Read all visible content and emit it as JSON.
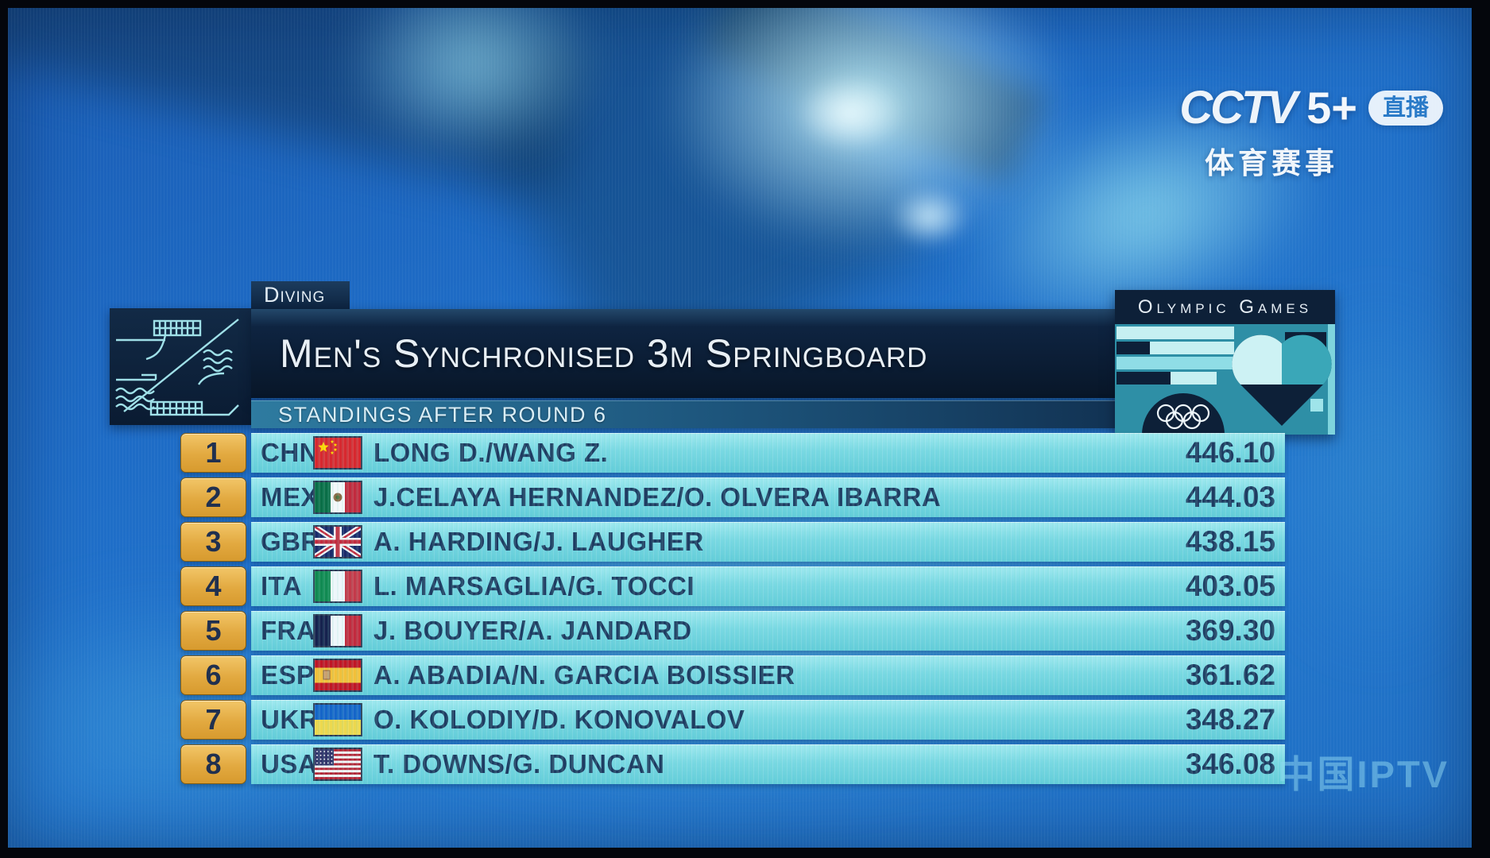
{
  "broadcast": {
    "channel": {
      "name": "CCTV",
      "number": "5+",
      "live_badge": "直播",
      "subtitle": "体育赛事"
    },
    "watermark": "中国IPTV"
  },
  "scoreboard": {
    "sport_tab": "Diving",
    "event_title": "Men's Synchronised 3m Springboard",
    "subtitle": "STANDINGS AFTER ROUND 6",
    "panel_title": "Olympic Games",
    "icons": [
      "diving-pictogram-icon",
      "olympic-rings-icon"
    ],
    "colors": {
      "bar_navy": "#0d2038",
      "row_cyan": "#79d8e3",
      "rank_gold": "#e2a940",
      "text_navy": "#1e3c62",
      "accent_teal": "#2e8fa6",
      "separator_blue": "#2f9ad8"
    },
    "standings": [
      {
        "rank": "1",
        "noc": "CHN",
        "flag": "china",
        "names": "LONG D./WANG Z.",
        "score": "446.10"
      },
      {
        "rank": "2",
        "noc": "MEX",
        "flag": "mexico",
        "names": "J.CELAYA HERNANDEZ/O. OLVERA IBARRA",
        "score": "444.03"
      },
      {
        "rank": "3",
        "noc": "GBR",
        "flag": "great-britain",
        "names": "A. HARDING/J. LAUGHER",
        "score": "438.15"
      },
      {
        "rank": "4",
        "noc": "ITA",
        "flag": "italy",
        "names": "L. MARSAGLIA/G. TOCCI",
        "score": "403.05"
      },
      {
        "rank": "5",
        "noc": "FRA",
        "flag": "france",
        "names": "J. BOUYER/A. JANDARD",
        "score": "369.30"
      },
      {
        "rank": "6",
        "noc": "ESP",
        "flag": "spain",
        "names": "A. ABADIA/N. GARCIA BOISSIER",
        "score": "361.62"
      },
      {
        "rank": "7",
        "noc": "UKR",
        "flag": "ukraine",
        "names": "O. KOLODIY/D. KONOVALOV",
        "score": "348.27"
      },
      {
        "rank": "8",
        "noc": "USA",
        "flag": "united-states",
        "names": "T. DOWNS/G. DUNCAN",
        "score": "346.08"
      }
    ]
  }
}
